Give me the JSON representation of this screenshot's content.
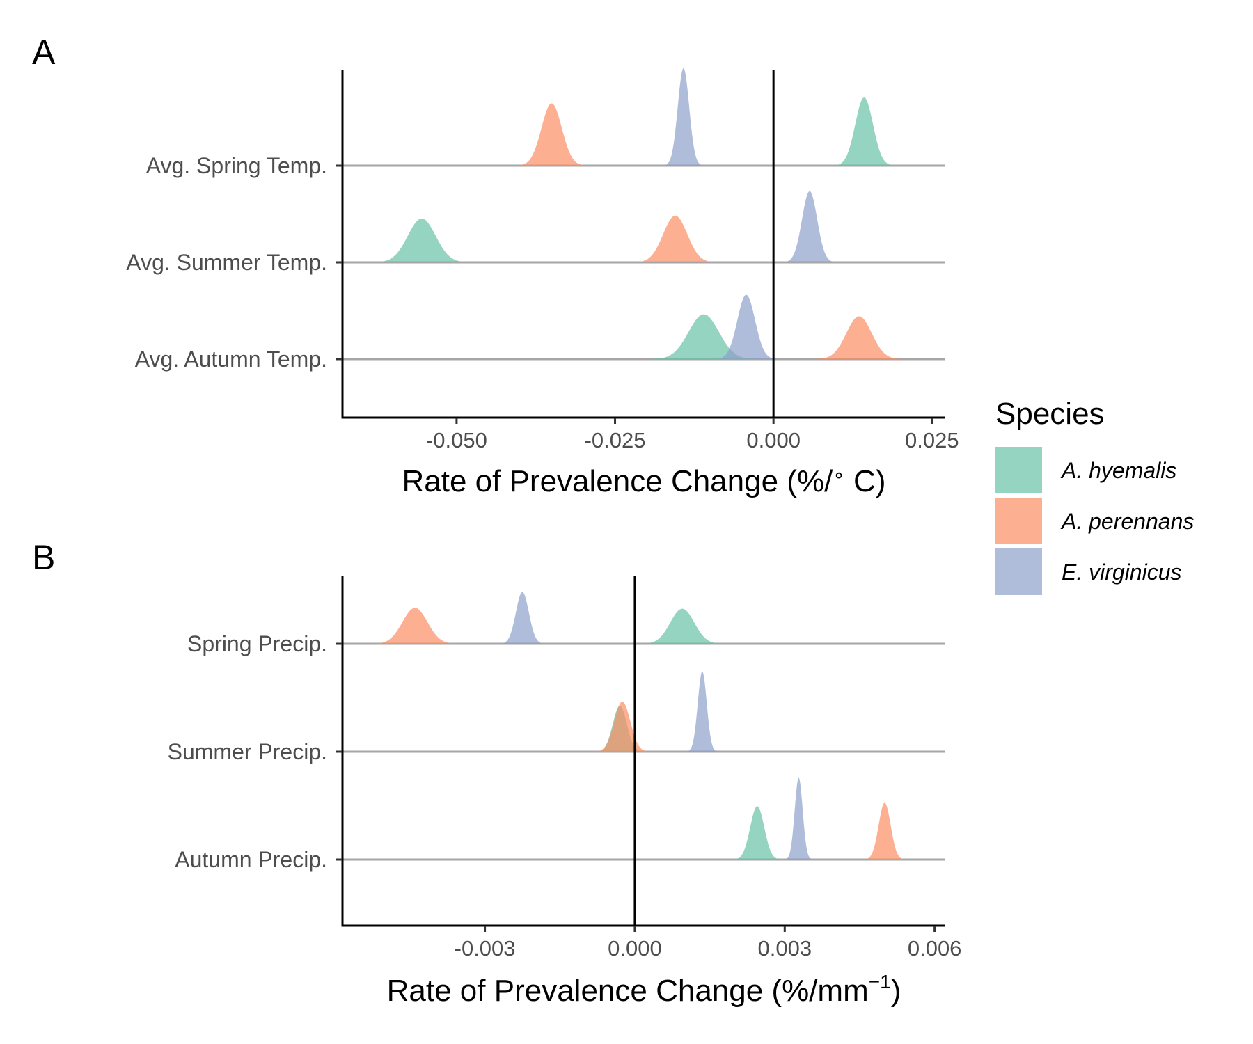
{
  "legend": {
    "title": "Species",
    "items": [
      {
        "label": "A. hyemalis",
        "color": "#66C2A5"
      },
      {
        "label": "A. perennans",
        "color": "#FC8D62"
      },
      {
        "label": "E. virginicus",
        "color": "#8DA0CB"
      }
    ]
  },
  "chart_data": [
    {
      "panel": "A",
      "type": "ridgeline-density",
      "xlabel_main": "Rate of Prevalence Change (%/",
      "xlabel_sup": "∘",
      "xlabel_tail": " C)",
      "xlim": [
        -0.068,
        0.027
      ],
      "xticks": [
        -0.05,
        -0.025,
        0.0,
        0.025
      ],
      "xtick_labels": [
        "-0.050",
        "-0.025",
        "0.000",
        "0.025"
      ],
      "categories": [
        "Avg. Spring Temp.",
        "Avg. Summer Temp.",
        "Avg. Autumn Temp."
      ],
      "reference_line_x": 0.0,
      "series": [
        {
          "name": "A. hyemalis",
          "color": "#66C2A5",
          "densities": [
            {
              "category": "Avg. Spring Temp.",
              "peak_x": 0.0143,
              "sd": 0.0014,
              "rel_height": 0.7
            },
            {
              "category": "Avg. Summer Temp.",
              "peak_x": -0.0555,
              "sd": 0.0022,
              "rel_height": 0.45
            },
            {
              "category": "Avg. Autumn Temp.",
              "peak_x": -0.011,
              "sd": 0.0024,
              "rel_height": 0.46
            }
          ]
        },
        {
          "name": "A. perennans",
          "color": "#FC8D62",
          "densities": [
            {
              "category": "Avg. Spring Temp.",
              "peak_x": -0.035,
              "sd": 0.0016,
              "rel_height": 0.64
            },
            {
              "category": "Avg. Summer Temp.",
              "peak_x": -0.0155,
              "sd": 0.0019,
              "rel_height": 0.48
            },
            {
              "category": "Avg. Autumn Temp.",
              "peak_x": 0.0135,
              "sd": 0.002,
              "rel_height": 0.44
            }
          ]
        },
        {
          "name": "E. virginicus",
          "color": "#8DA0CB",
          "densities": [
            {
              "category": "Avg. Spring Temp.",
              "peak_x": -0.0142,
              "sd": 0.0009,
              "rel_height": 1.0
            },
            {
              "category": "Avg. Summer Temp.",
              "peak_x": 0.0057,
              "sd": 0.0012,
              "rel_height": 0.73
            },
            {
              "category": "Avg. Autumn Temp.",
              "peak_x": -0.0043,
              "sd": 0.0014,
              "rel_height": 0.66
            }
          ]
        }
      ]
    },
    {
      "panel": "B",
      "type": "ridgeline-density",
      "xlabel_main": "Rate of Prevalence Change (%/mm",
      "xlabel_sup": "−1",
      "xlabel_tail": ")",
      "xlim": [
        -0.00585,
        0.0062
      ],
      "xticks": [
        -0.003,
        0.0,
        0.003,
        0.006
      ],
      "xtick_labels": [
        "-0.003",
        "0.000",
        "0.003",
        "0.006"
      ],
      "categories": [
        "Spring Precip.",
        "Summer Precip.",
        "Autumn Precip."
      ],
      "reference_line_x": 0.0,
      "series": [
        {
          "name": "A. hyemalis",
          "color": "#66C2A5",
          "densities": [
            {
              "category": "Spring Precip.",
              "peak_x": 0.00095,
              "sd": 0.00024,
              "rel_height": 0.42
            },
            {
              "category": "Summer Precip.",
              "peak_x": -0.0003,
              "sd": 0.00014,
              "rel_height": 0.55
            },
            {
              "category": "Autumn Precip.",
              "peak_x": 0.00245,
              "sd": 0.00014,
              "rel_height": 0.64
            }
          ]
        },
        {
          "name": "A. perennans",
          "color": "#FC8D62",
          "densities": [
            {
              "category": "Spring Precip.",
              "peak_x": -0.0044,
              "sd": 0.00025,
              "rel_height": 0.43
            },
            {
              "category": "Summer Precip.",
              "peak_x": -0.00025,
              "sd": 0.00016,
              "rel_height": 0.6
            },
            {
              "category": "Autumn Precip.",
              "peak_x": 0.005,
              "sd": 0.00012,
              "rel_height": 0.68
            }
          ]
        },
        {
          "name": "E. virginicus",
          "color": "#8DA0CB",
          "densities": [
            {
              "category": "Spring Precip.",
              "peak_x": -0.00225,
              "sd": 0.00013,
              "rel_height": 0.62
            },
            {
              "category": "Summer Precip.",
              "peak_x": 0.00135,
              "sd": 9e-05,
              "rel_height": 0.96
            },
            {
              "category": "Autumn Precip.",
              "peak_x": 0.00328,
              "sd": 8e-05,
              "rel_height": 0.98
            }
          ]
        }
      ]
    }
  ]
}
